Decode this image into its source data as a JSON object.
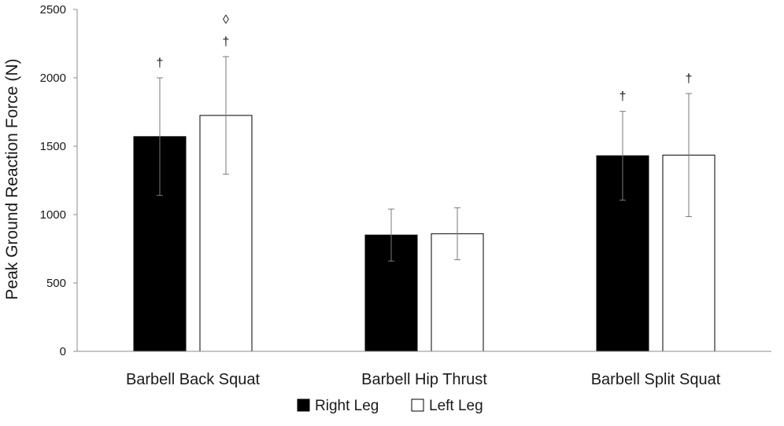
{
  "chart_data": {
    "type": "bar",
    "title": "",
    "xlabel": "",
    "ylabel": "Peak Ground Reaction Force (N)",
    "ylim": [
      0,
      2500
    ],
    "yticks": [
      0,
      500,
      1000,
      1500,
      2000,
      2500
    ],
    "grid": false,
    "legend_position": "bottom-center",
    "categories": [
      "Barbell Back Squat",
      "Barbell Hip Thrust",
      "Barbell Split Squat"
    ],
    "series": [
      {
        "name": "Right Leg",
        "color": "#000000",
        "fill": "#000000",
        "values": [
          1570,
          850,
          1430
        ],
        "error": [
          430,
          190,
          325
        ],
        "annotations": [
          [
            "†"
          ],
          [],
          [
            "†"
          ]
        ]
      },
      {
        "name": "Left Leg",
        "color": "#000000",
        "fill": "#ffffff",
        "values": [
          1725,
          860,
          1435
        ],
        "error": [
          430,
          190,
          450
        ],
        "annotations": [
          [
            "◊",
            "†"
          ],
          [],
          [
            "†"
          ]
        ]
      }
    ]
  }
}
